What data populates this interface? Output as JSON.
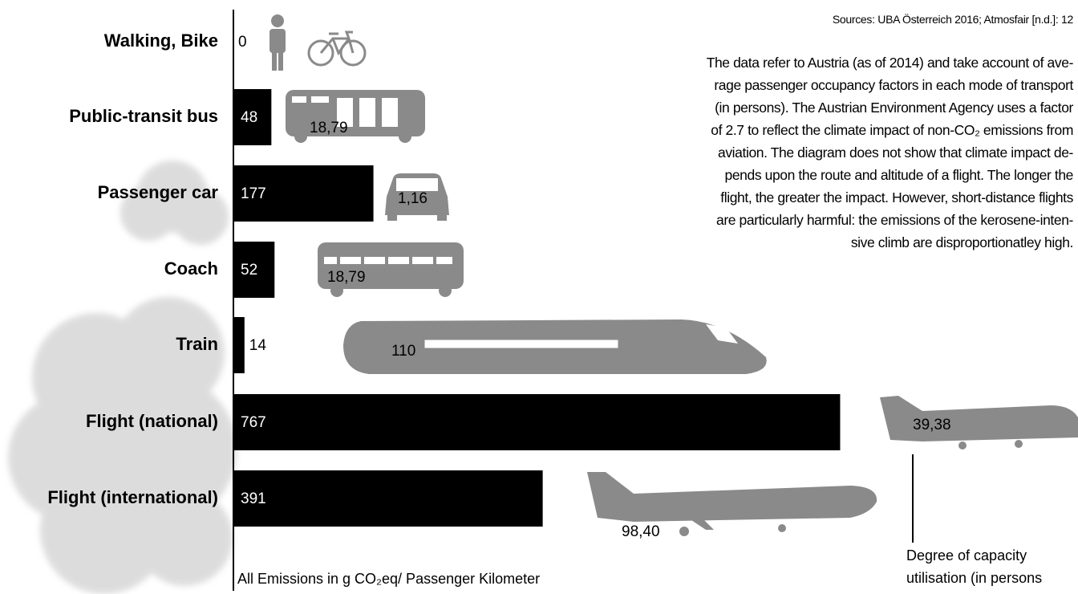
{
  "chart_data": {
    "type": "bar",
    "orientation": "horizontal",
    "source": "Sources: UBA Österreich 2016; Atmosfair [n.d.]: 12",
    "note_lines": [
      "The data refer to Austria (as of 2014) and take account of ave-",
      "rage passenger occupancy factors in each mode of transport",
      "(in persons). The Austrian Environment Agency uses a factor",
      "of 2.7 to reflect the climate impact of non-CO₂ emissions from",
      "aviation. The diagram does not show that climate impact de-",
      "pends upon the route and altitude of a flight. The longer the",
      "flight, the greater the impact. However, short-distance flights",
      "are particularly harmful: the emissions of the kerosene-inten-",
      "sive climb are disproportionatley high."
    ],
    "x_label": "All Emissions in g CO₂eq/ Passenger Kilometer",
    "capacity_note": [
      "Degree of capacity",
      "utilisation (in persons"
    ],
    "categories": [
      "Walking, Bike",
      "Public-transit bus",
      "Passenger car",
      "Coach",
      "Train",
      "Flight (national)",
      "Flight (international)"
    ],
    "values": [
      0,
      48,
      177,
      52,
      14,
      767,
      391
    ],
    "occupancy_labels": [
      null,
      "18,79",
      "1,16",
      "18,79",
      "110",
      "39,38",
      "98,40"
    ],
    "color": "#000000",
    "xlim": [
      0,
      800
    ]
  }
}
